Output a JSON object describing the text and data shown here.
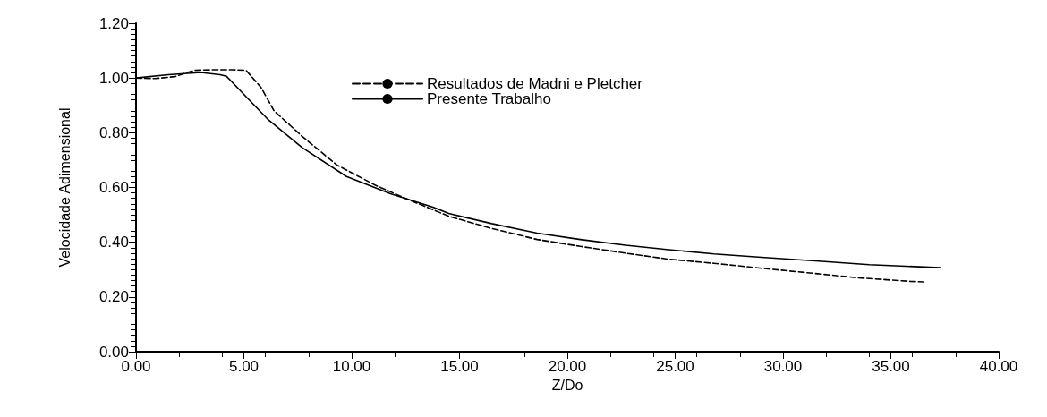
{
  "chart_data": {
    "type": "line",
    "xlabel": "Z/Do",
    "ylabel": "Velocidade Adimensional",
    "legend": "top",
    "grid": false,
    "marker": "none",
    "xlim": [
      0,
      40
    ],
    "ylim": [
      0,
      1.2
    ],
    "xticks": [
      {
        "value": 0,
        "label": "0.00"
      },
      {
        "value": 5,
        "label": "5.00"
      },
      {
        "value": 10,
        "label": "10.00"
      },
      {
        "value": 15,
        "label": "15.00"
      },
      {
        "value": 20,
        "label": "20.00"
      },
      {
        "value": 25,
        "label": "25.00"
      },
      {
        "value": 30,
        "label": "30.00"
      },
      {
        "value": 35,
        "label": "35.00"
      },
      {
        "value": 40,
        "label": "40.00"
      }
    ],
    "yticks": [
      {
        "value": 0,
        "label": "0.00"
      },
      {
        "value": 0.2,
        "label": "0.20"
      },
      {
        "value": 0.4,
        "label": "0.40"
      },
      {
        "value": 0.6,
        "label": "0.60"
      },
      {
        "value": 0.8,
        "label": "0.80"
      },
      {
        "value": 1,
        "label": "1.00"
      },
      {
        "value": 1.2,
        "label": "1.20"
      }
    ],
    "series": [
      {
        "name": "Resultados de Madni e Pletcher",
        "color": "#000000",
        "line_style": "dashed",
        "x": [
          0,
          0.9,
          1.8,
          2.7,
          3.6,
          4.5,
          5.1,
          5.8,
          6.4,
          7.7,
          9.3,
          11.1,
          12.5,
          14.5,
          16.5,
          18.6,
          20.6,
          22.7,
          24.7,
          26.8,
          29,
          31.6,
          33.5,
          35.9,
          36.5
        ],
        "values": [
          1.0,
          0.998,
          1.005,
          1.028,
          1.03,
          1.03,
          1.028,
          0.965,
          0.88,
          0.787,
          0.683,
          0.608,
          0.56,
          0.495,
          0.45,
          0.41,
          0.385,
          0.36,
          0.338,
          0.323,
          0.305,
          0.285,
          0.27,
          0.257,
          0.255
        ]
      },
      {
        "name": "Presente Trabalho",
        "color": "#000000",
        "line_style": "solid",
        "x": [
          0,
          1.5,
          3,
          3.9,
          4.2,
          5,
          6.1,
          7.7,
          9.76,
          11.8,
          13.8,
          14.5,
          16.5,
          18.6,
          20.6,
          22.7,
          24.7,
          26.8,
          29,
          31.5,
          34,
          37.3
        ],
        "values": [
          1.0,
          1.012,
          1.02,
          1.012,
          1.006,
          0.94,
          0.85,
          0.746,
          0.64,
          0.577,
          0.527,
          0.505,
          0.468,
          0.433,
          0.41,
          0.389,
          0.373,
          0.357,
          0.345,
          0.332,
          0.318,
          0.307
        ]
      }
    ]
  }
}
